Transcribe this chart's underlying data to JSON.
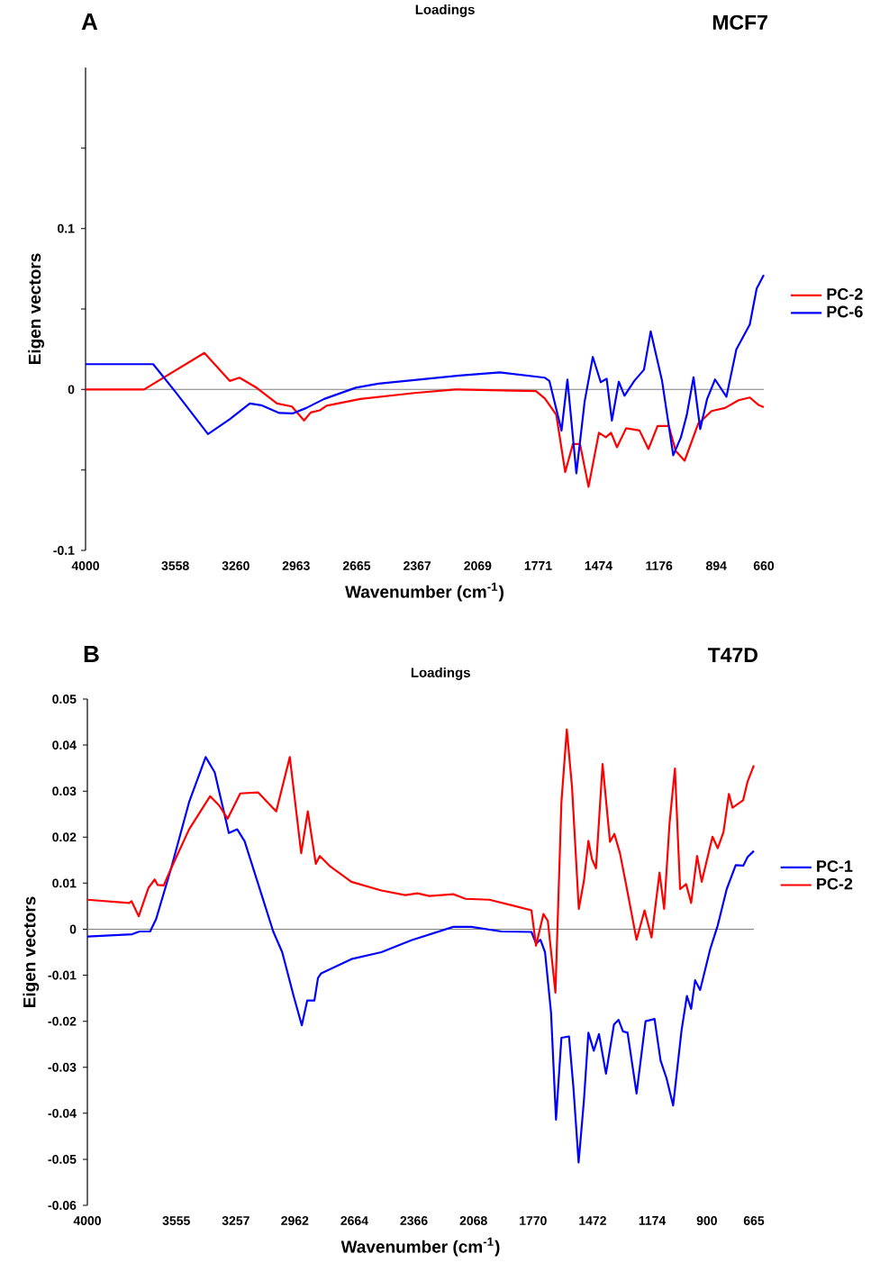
{
  "chart_data": [
    {
      "type": "line",
      "title": "Loadings",
      "xlabel": "Wavenumber (cm$^{-1}$)",
      "ylabel": "Eigen vectors",
      "annotations": [
        "A",
        "MCF7"
      ],
      "xlim": [
        4000,
        660
      ],
      "xticks": [
        4000,
        3558,
        3260,
        2963,
        2665,
        2367,
        2069,
        1771,
        1474,
        1176,
        894,
        660
      ],
      "ylim": [
        -0.1,
        0.2
      ],
      "yticks": [
        -0.1,
        {
          "value": -0.05,
          "label": null
        },
        0,
        {
          "value": 0.05,
          "label": null
        },
        0.1,
        {
          "value": 0.15,
          "label": null
        }
      ],
      "legend": "right",
      "ref_lines": [
        {
          "axis": "y",
          "value": 0,
          "color": "#808080"
        }
      ],
      "series": [
        {
          "name": "PC-2",
          "color": "#ff0000",
          "x": [
            4000,
            3712,
            3415,
            3290,
            3242,
            3157,
            3057,
            2984,
            2924,
            2891,
            2847,
            2813,
            2647,
            2381,
            2181,
            1782,
            1738,
            1682,
            1638,
            1600,
            1565,
            1523,
            1472,
            1438,
            1412,
            1383,
            1338,
            1272,
            1228,
            1183,
            1128,
            1094,
            1050,
            983,
            917,
            851,
            784,
            729,
            684,
            660
          ],
          "values": [
            0,
            0,
            0.0227,
            0.0053,
            0.0073,
            0.001,
            -0.0087,
            -0.0106,
            -0.0193,
            -0.0143,
            -0.013,
            -0.0101,
            -0.0059,
            -0.0022,
            0,
            -0.001,
            -0.0056,
            -0.0157,
            -0.0513,
            -0.0339,
            -0.0339,
            -0.0605,
            -0.0269,
            -0.0297,
            -0.0269,
            -0.0359,
            -0.0241,
            -0.0255,
            -0.037,
            -0.0227,
            -0.0227,
            -0.0381,
            -0.0443,
            -0.0213,
            -0.0134,
            -0.0115,
            -0.0067,
            -0.005,
            -0.0098,
            -0.011
          ]
        },
        {
          "name": "PC-6",
          "color": "#0000ff",
          "x": [
            4000,
            3667,
            3556,
            3397,
            3290,
            3191,
            3135,
            3046,
            2980,
            2913,
            2825,
            2669,
            2558,
            2159,
            1960,
            1738,
            1716,
            1656,
            1627,
            1583,
            1542,
            1502,
            1463,
            1434,
            1408,
            1374,
            1346,
            1298,
            1250,
            1217,
            1161,
            1106,
            1068,
            1039,
            1006,
            973,
            939,
            900,
            844,
            795,
            729,
            695,
            660
          ],
          "values": [
            0.0157,
            0.0157,
            -0.0017,
            -0.0277,
            -0.0185,
            -0.0087,
            -0.0098,
            -0.0146,
            -0.0149,
            -0.0115,
            -0.0059,
            0.0011,
            0.0036,
            0.0087,
            0.0106,
            0.0073,
            0.0053,
            -0.0255,
            0.0062,
            -0.0521,
            -0.0073,
            0.0202,
            0.0045,
            0.0067,
            -0.0193,
            0.0048,
            -0.0039,
            0.0053,
            0.0123,
            0.0361,
            0.0053,
            -0.0409,
            -0.0297,
            -0.0157,
            0.0076,
            -0.0246,
            -0.0059,
            0.0062,
            -0.0045,
            0.0249,
            0.0403,
            0.0627,
            0.0711
          ]
        }
      ]
    },
    {
      "type": "line",
      "title": "Loadings",
      "xlabel": "Wavenumber (cm$^{-1}$)",
      "ylabel": "Eigen vectors",
      "annotations": [
        "B",
        "T47D"
      ],
      "xlim": [
        4000,
        665
      ],
      "xticks": [
        4000,
        3555,
        3257,
        2962,
        2664,
        2366,
        2068,
        1770,
        1472,
        1174,
        900,
        665
      ],
      "ylim": [
        -0.06,
        0.05
      ],
      "yticks": [
        -0.06,
        -0.05,
        -0.04,
        -0.03,
        -0.02,
        -0.01,
        0,
        0.01,
        0.02,
        0.03,
        0.04,
        0.05
      ],
      "legend": "right",
      "ref_lines": [
        {
          "axis": "y",
          "value": 0,
          "color": "#808080"
        }
      ],
      "series": [
        {
          "name": "PC-1",
          "color": "#0000ff",
          "x": [
            4000,
            3776,
            3739,
            3686,
            3656,
            3581,
            3491,
            3408,
            3363,
            3292,
            3250,
            3213,
            3070,
            3025,
            2968,
            2927,
            2900,
            2864,
            2846,
            2830,
            2679,
            2529,
            2379,
            2169,
            2079,
            1928,
            1778,
            1755,
            1733,
            1710,
            1680,
            1655,
            1628,
            1590,
            1568,
            1542,
            1515,
            1493,
            1466,
            1440,
            1405,
            1365,
            1342,
            1320,
            1297,
            1252,
            1207,
            1162,
            1132,
            1102,
            1069,
            1027,
            1000,
            979,
            959,
            934,
            884,
            846,
            801,
            756,
            718,
            696,
            665
          ],
          "values": [
            -0.0016,
            -0.0011,
            -0.0005,
            -0.0005,
            0.0022,
            0.0132,
            0.0276,
            0.0374,
            0.0341,
            0.0209,
            0.0217,
            0.0191,
            -0.0005,
            -0.005,
            -0.0145,
            -0.0209,
            -0.0155,
            -0.0155,
            -0.0106,
            -0.0096,
            -0.0065,
            -0.005,
            -0.0024,
            0.0005,
            0.0005,
            -0.0005,
            -0.0006,
            -0.0031,
            -0.0023,
            -0.005,
            -0.0181,
            -0.0414,
            -0.0236,
            -0.0233,
            -0.0344,
            -0.0507,
            -0.037,
            -0.0225,
            -0.0264,
            -0.0228,
            -0.0314,
            -0.0207,
            -0.0197,
            -0.0222,
            -0.0225,
            -0.0357,
            -0.02,
            -0.0195,
            -0.0285,
            -0.0324,
            -0.0383,
            -0.022,
            -0.0145,
            -0.0173,
            -0.0111,
            -0.0132,
            -0.0044,
            0.0008,
            0.0087,
            0.0139,
            0.0138,
            0.0157,
            0.017
          ]
        },
        {
          "name": "PC-2",
          "color": "#ff0000",
          "x": [
            4000,
            3791,
            3779,
            3743,
            3694,
            3663,
            3648,
            3618,
            3581,
            3491,
            3386,
            3341,
            3298,
            3235,
            3145,
            3055,
            2987,
            2930,
            2897,
            2857,
            2837,
            2784,
            2679,
            2529,
            2409,
            2349,
            2289,
            2169,
            2108,
            1989,
            1868,
            1778,
            1755,
            1718,
            1696,
            1658,
            1628,
            1601,
            1575,
            1541,
            1515,
            1493,
            1475,
            1455,
            1422,
            1385,
            1363,
            1335,
            1297,
            1252,
            1212,
            1177,
            1137,
            1114,
            1087,
            1060,
            1034,
            1004,
            979,
            949,
            926,
            872,
            846,
            817,
            790,
            772,
            719,
            697,
            665
          ],
          "values": [
            0.0064,
            0.0057,
            0.0061,
            0.0028,
            0.009,
            0.0108,
            0.0096,
            0.0095,
            0.0132,
            0.0217,
            0.0289,
            0.0269,
            0.024,
            0.0295,
            0.0297,
            0.0256,
            0.0374,
            0.0165,
            0.0256,
            0.0142,
            0.0159,
            0.0136,
            0.0103,
            0.0084,
            0.0074,
            0.0078,
            0.0072,
            0.0076,
            0.0066,
            0.0064,
            0.0051,
            0.0041,
            -0.0036,
            0.0033,
            0.0018,
            -0.0138,
            0.0276,
            0.0434,
            0.0309,
            0.0044,
            0.0106,
            0.0192,
            0.0152,
            0.0132,
            0.0359,
            0.019,
            0.0207,
            0.0165,
            0.008,
            -0.0023,
            0.0041,
            -0.0018,
            0.0123,
            0.0044,
            0.023,
            0.0349,
            0.0087,
            0.0098,
            0.0057,
            0.0159,
            0.0103,
            0.0201,
            0.0176,
            0.0211,
            0.0294,
            0.0264,
            0.028,
            0.032,
            0.0356
          ]
        }
      ]
    }
  ]
}
